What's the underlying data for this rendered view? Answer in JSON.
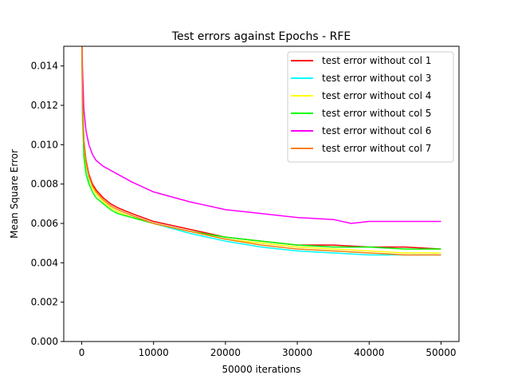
{
  "chart_data": {
    "type": "line",
    "title": "Test errors against Epochs - RFE",
    "xlabel": "50000 iterations",
    "ylabel": "Mean Square Error",
    "xlim": [
      -2500,
      52500
    ],
    "ylim": [
      0,
      0.015
    ],
    "xticks": [
      0,
      10000,
      20000,
      30000,
      40000,
      50000
    ],
    "xtick_labels": [
      "0",
      "10000",
      "20000",
      "30000",
      "40000",
      "50000"
    ],
    "yticks": [
      0,
      0.002,
      0.004,
      0.006,
      0.008,
      0.01,
      0.012,
      0.014
    ],
    "ytick_labels": [
      "0.000",
      "0.002",
      "0.004",
      "0.006",
      "0.008",
      "0.010",
      "0.012",
      "0.014"
    ],
    "grid": false,
    "legend_position": "upper right",
    "series": [
      {
        "name": "test error without col 1",
        "color": "#ff0000",
        "x": [
          0,
          100,
          300,
          600,
          1000,
          1500,
          2000,
          3000,
          4000,
          5000,
          7000,
          10000,
          15000,
          20000,
          25000,
          30000,
          35000,
          40000,
          45000,
          50000
        ],
        "y": [
          0.0165,
          0.0125,
          0.0102,
          0.0092,
          0.0085,
          0.008,
          0.0077,
          0.0073,
          0.007,
          0.0068,
          0.0065,
          0.0061,
          0.0057,
          0.0053,
          0.0051,
          0.0049,
          0.0049,
          0.0048,
          0.0048,
          0.0047
        ]
      },
      {
        "name": "test error without col 3",
        "color": "#00ffff",
        "x": [
          0,
          100,
          300,
          600,
          1000,
          1500,
          2000,
          3000,
          4000,
          5000,
          7000,
          10000,
          15000,
          20000,
          25000,
          30000,
          35000,
          40000,
          45000,
          50000
        ],
        "y": [
          0.0165,
          0.012,
          0.0098,
          0.0089,
          0.0082,
          0.0078,
          0.0075,
          0.0071,
          0.0068,
          0.0066,
          0.0063,
          0.006,
          0.0055,
          0.0051,
          0.0048,
          0.0046,
          0.0045,
          0.0044,
          0.0044,
          0.0044
        ]
      },
      {
        "name": "test error without col 4",
        "color": "#ffff00",
        "x": [
          0,
          100,
          300,
          600,
          1000,
          1500,
          2000,
          3000,
          4000,
          5000,
          7000,
          10000,
          15000,
          20000,
          25000,
          30000,
          35000,
          40000,
          45000,
          50000
        ],
        "y": [
          0.0165,
          0.0122,
          0.01,
          0.009,
          0.0083,
          0.0078,
          0.0075,
          0.0071,
          0.0068,
          0.0066,
          0.0063,
          0.006,
          0.0056,
          0.0052,
          0.005,
          0.0048,
          0.0047,
          0.0046,
          0.0045,
          0.0045
        ]
      },
      {
        "name": "test error without col 5",
        "color": "#00ff00",
        "x": [
          0,
          100,
          300,
          600,
          1000,
          1500,
          2000,
          3000,
          4000,
          5000,
          7000,
          10000,
          15000,
          20000,
          25000,
          30000,
          35000,
          40000,
          45000,
          50000
        ],
        "y": [
          0.0165,
          0.0115,
          0.0094,
          0.0085,
          0.008,
          0.0076,
          0.0073,
          0.007,
          0.0067,
          0.0065,
          0.0063,
          0.006,
          0.0056,
          0.0053,
          0.0051,
          0.0049,
          0.0048,
          0.0048,
          0.0047,
          0.0047
        ]
      },
      {
        "name": "test error without col 6",
        "color": "#ff00ff",
        "x": [
          0,
          100,
          300,
          600,
          1000,
          1500,
          2000,
          3000,
          4000,
          5000,
          7000,
          10000,
          15000,
          20000,
          25000,
          30000,
          35000,
          37500,
          40000,
          45000,
          50000
        ],
        "y": [
          0.0165,
          0.014,
          0.0118,
          0.0107,
          0.01,
          0.0095,
          0.0092,
          0.0089,
          0.0087,
          0.0085,
          0.0081,
          0.0076,
          0.0071,
          0.0067,
          0.0065,
          0.0063,
          0.0062,
          0.006,
          0.0061,
          0.0061,
          0.0061
        ]
      },
      {
        "name": "test error without col 7",
        "color": "#ff7f0e",
        "x": [
          0,
          100,
          300,
          600,
          1000,
          1500,
          2000,
          3000,
          4000,
          5000,
          7000,
          10000,
          15000,
          20000,
          25000,
          30000,
          35000,
          40000,
          45000,
          50000
        ],
        "y": [
          0.0165,
          0.0123,
          0.0101,
          0.0091,
          0.0084,
          0.0079,
          0.0076,
          0.0072,
          0.0069,
          0.0067,
          0.0064,
          0.006,
          0.0056,
          0.0052,
          0.0049,
          0.0047,
          0.0046,
          0.0045,
          0.0044,
          0.0044
        ]
      }
    ]
  }
}
